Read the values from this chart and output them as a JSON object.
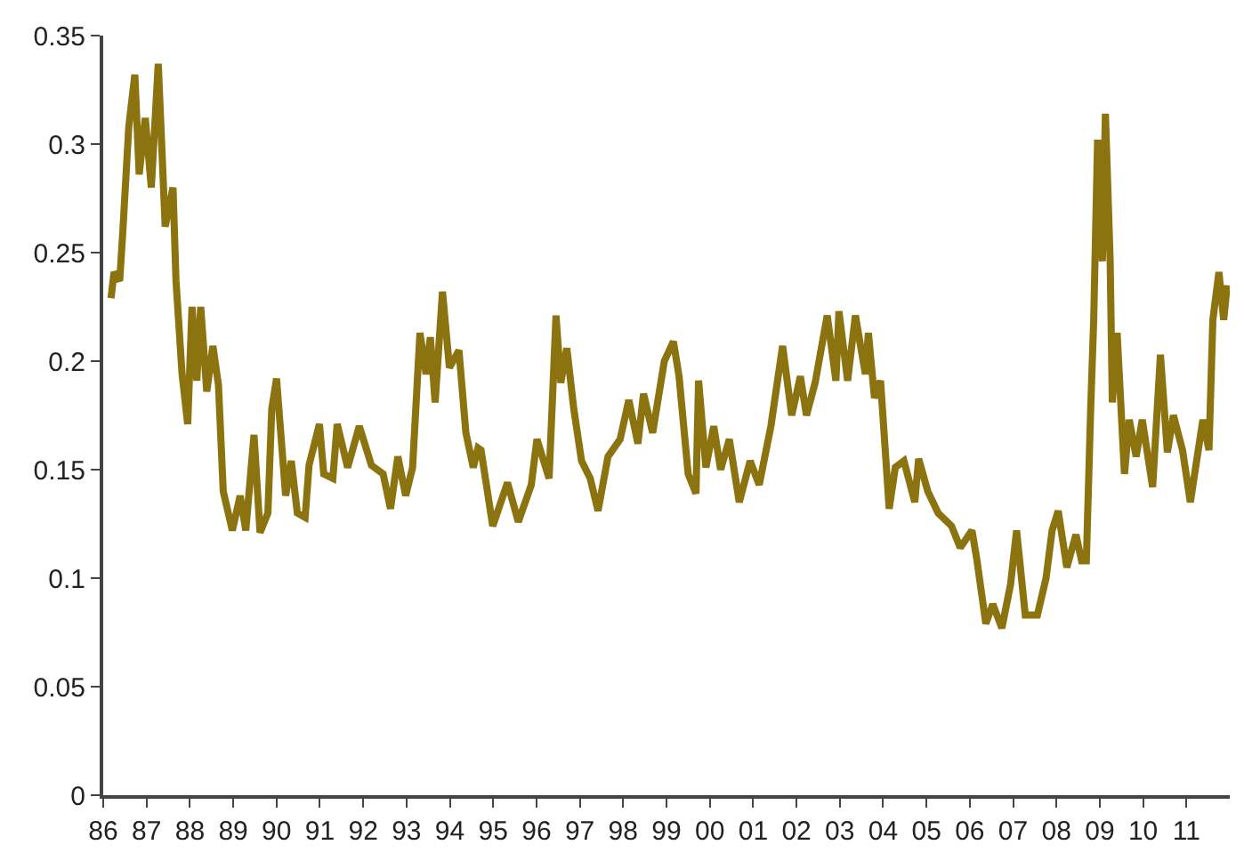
{
  "chart_data": {
    "type": "line",
    "x": [
      1986.18,
      1986.25,
      1986.38,
      1986.45,
      1986.59,
      1986.73,
      1986.83,
      1986.97,
      1987.11,
      1987.27,
      1987.43,
      1987.61,
      1987.68,
      1987.82,
      1987.95,
      1988.05,
      1988.16,
      1988.25,
      1988.39,
      1988.53,
      1988.66,
      1988.77,
      1988.98,
      1989.16,
      1989.29,
      1989.48,
      1989.62,
      1989.8,
      1989.89,
      1990.0,
      1990.21,
      1990.34,
      1990.48,
      1990.66,
      1990.75,
      1990.99,
      1991.09,
      1991.3,
      1991.4,
      1991.64,
      1991.91,
      1992.19,
      1992.46,
      1992.63,
      1992.8,
      1992.98,
      1993.14,
      1993.31,
      1993.45,
      1993.55,
      1993.66,
      1993.83,
      1993.99,
      1994.21,
      1994.37,
      1994.54,
      1994.65,
      1994.72,
      1994.99,
      1995.33,
      1995.58,
      1995.88,
      1996.01,
      1996.29,
      1996.45,
      1996.56,
      1996.7,
      1996.86,
      1997.04,
      1997.24,
      1997.42,
      1997.65,
      1997.93,
      1998.13,
      1998.34,
      1998.47,
      1998.68,
      1998.95,
      1999.16,
      1999.29,
      1999.5,
      1999.68,
      1999.74,
      1999.91,
      2000.09,
      2000.25,
      2000.45,
      2000.68,
      2000.93,
      2001.14,
      2001.41,
      2001.68,
      2001.89,
      2002.09,
      2002.23,
      2002.43,
      2002.71,
      2002.91,
      2002.98,
      2003.18,
      2003.36,
      2003.59,
      2003.66,
      2003.8,
      2003.94,
      2004.14,
      2004.28,
      2004.48,
      2004.73,
      2004.82,
      2005.03,
      2005.27,
      2005.58,
      2005.78,
      2006.05,
      2006.16,
      2006.37,
      2006.53,
      2006.74,
      2006.94,
      2007.08,
      2007.28,
      2007.56,
      2007.76,
      2007.9,
      2008.04,
      2008.24,
      2008.45,
      2008.58,
      2008.69,
      2008.79,
      2008.86,
      2008.95,
      2009.06,
      2009.13,
      2009.24,
      2009.29,
      2009.4,
      2009.57,
      2009.68,
      2009.84,
      2009.98,
      2010.22,
      2010.4,
      2010.56,
      2010.7,
      2010.91,
      2011.09,
      2011.25,
      2011.38,
      2011.52,
      2011.61,
      2011.75,
      2011.86,
      2011.94
    ],
    "series": [
      {
        "color": "#8b7310",
        "values": [
          0.229,
          0.241,
          0.237,
          0.259,
          0.308,
          0.332,
          0.286,
          0.312,
          0.28,
          0.337,
          0.262,
          0.28,
          0.237,
          0.194,
          0.171,
          0.225,
          0.191,
          0.225,
          0.186,
          0.207,
          0.189,
          0.14,
          0.122,
          0.138,
          0.122,
          0.166,
          0.121,
          0.13,
          0.178,
          0.192,
          0.138,
          0.154,
          0.13,
          0.128,
          0.152,
          0.171,
          0.148,
          0.146,
          0.171,
          0.151,
          0.17,
          0.152,
          0.148,
          0.132,
          0.156,
          0.138,
          0.151,
          0.213,
          0.194,
          0.211,
          0.181,
          0.232,
          0.197,
          0.205,
          0.167,
          0.151,
          0.16,
          0.159,
          0.124,
          0.144,
          0.126,
          0.143,
          0.164,
          0.146,
          0.221,
          0.19,
          0.206,
          0.178,
          0.154,
          0.146,
          0.131,
          0.156,
          0.164,
          0.182,
          0.162,
          0.185,
          0.167,
          0.2,
          0.209,
          0.193,
          0.148,
          0.139,
          0.191,
          0.151,
          0.17,
          0.15,
          0.164,
          0.135,
          0.154,
          0.143,
          0.17,
          0.207,
          0.175,
          0.193,
          0.175,
          0.19,
          0.221,
          0.191,
          0.223,
          0.191,
          0.221,
          0.194,
          0.213,
          0.183,
          0.191,
          0.132,
          0.151,
          0.154,
          0.135,
          0.155,
          0.14,
          0.13,
          0.124,
          0.114,
          0.122,
          0.109,
          0.079,
          0.088,
          0.077,
          0.097,
          0.122,
          0.083,
          0.083,
          0.1,
          0.122,
          0.131,
          0.105,
          0.12,
          0.108,
          0.108,
          0.178,
          0.219,
          0.302,
          0.246,
          0.314,
          0.246,
          0.181,
          0.213,
          0.148,
          0.173,
          0.156,
          0.173,
          0.142,
          0.203,
          0.158,
          0.175,
          0.159,
          0.135,
          0.156,
          0.173,
          0.159,
          0.219,
          0.241,
          0.219,
          0.235
        ]
      }
    ],
    "xlim": [
      1986,
      2012
    ],
    "xticks": [
      {
        "value": 1986,
        "label": "86"
      },
      {
        "value": 1987,
        "label": "87"
      },
      {
        "value": 1988,
        "label": "88"
      },
      {
        "value": 1989,
        "label": "89"
      },
      {
        "value": 1990,
        "label": "90"
      },
      {
        "value": 1991,
        "label": "91"
      },
      {
        "value": 1992,
        "label": "92"
      },
      {
        "value": 1993,
        "label": "93"
      },
      {
        "value": 1994,
        "label": "94"
      },
      {
        "value": 1995,
        "label": "95"
      },
      {
        "value": 1996,
        "label": "96"
      },
      {
        "value": 1997,
        "label": "97"
      },
      {
        "value": 1998,
        "label": "98"
      },
      {
        "value": 1999,
        "label": "99"
      },
      {
        "value": 2000,
        "label": "00"
      },
      {
        "value": 2001,
        "label": "01"
      },
      {
        "value": 2002,
        "label": "02"
      },
      {
        "value": 2003,
        "label": "03"
      },
      {
        "value": 2004,
        "label": "04"
      },
      {
        "value": 2005,
        "label": "05"
      },
      {
        "value": 2006,
        "label": "06"
      },
      {
        "value": 2007,
        "label": "07"
      },
      {
        "value": 2008,
        "label": "08"
      },
      {
        "value": 2009,
        "label": "09"
      },
      {
        "value": 2010,
        "label": "10"
      },
      {
        "value": 2011,
        "label": "11"
      }
    ],
    "ylim": [
      0,
      0.35
    ],
    "yticks": [
      0,
      0.05,
      0.1,
      0.15,
      0.2,
      0.25,
      0.3,
      0.35
    ],
    "marker": "none",
    "line_style": "solid"
  }
}
